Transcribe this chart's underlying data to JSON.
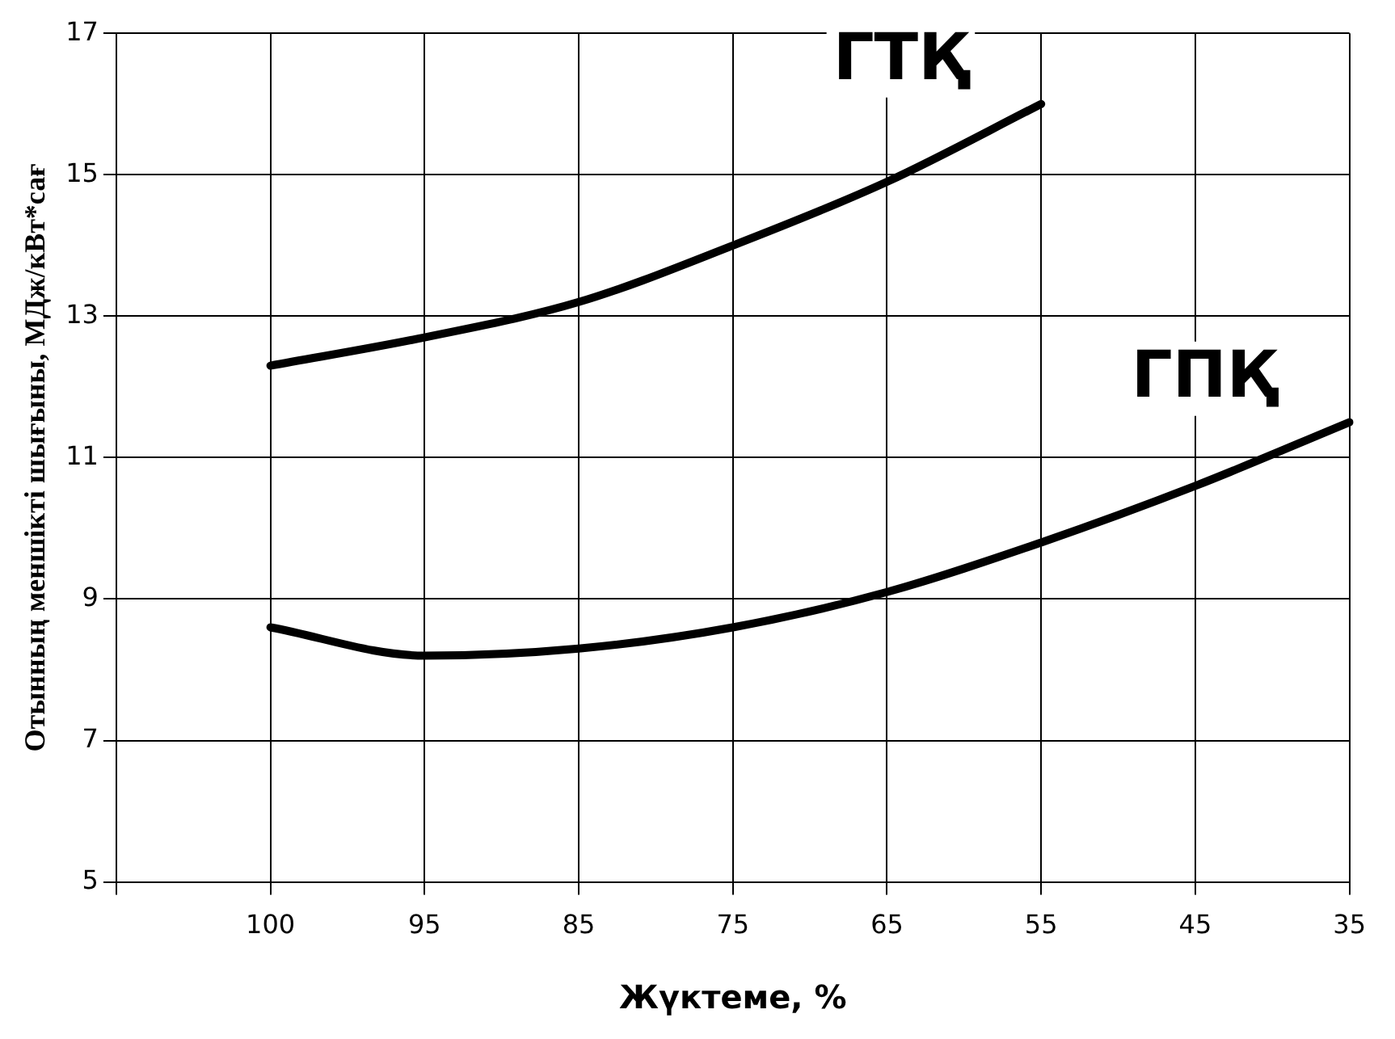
{
  "chart_data": {
    "type": "line",
    "xlabel": "Жүктеме, %",
    "ylabel": "Отынның меншікті шығыны, МДж/кВт*сағ",
    "categories": [
      null,
      "100",
      "95",
      "85",
      "75",
      "65",
      "55",
      "45",
      "35"
    ],
    "series": [
      {
        "name": "ГТҚ",
        "color": "#000000",
        "values": [
          null,
          12.3,
          12.7,
          13.2,
          14.0,
          14.9,
          16.0,
          null,
          null
        ]
      },
      {
        "name": "ГПҚ",
        "color": "#000000",
        "values": [
          null,
          8.6,
          8.2,
          8.3,
          8.6,
          9.1,
          9.8,
          10.6,
          11.5
        ]
      }
    ],
    "ylim": [
      5,
      17
    ],
    "yticks": [
      5,
      7,
      9,
      11,
      13,
      15,
      17
    ],
    "grid": true,
    "legend": false,
    "marker": "none",
    "line_style": "solid"
  }
}
